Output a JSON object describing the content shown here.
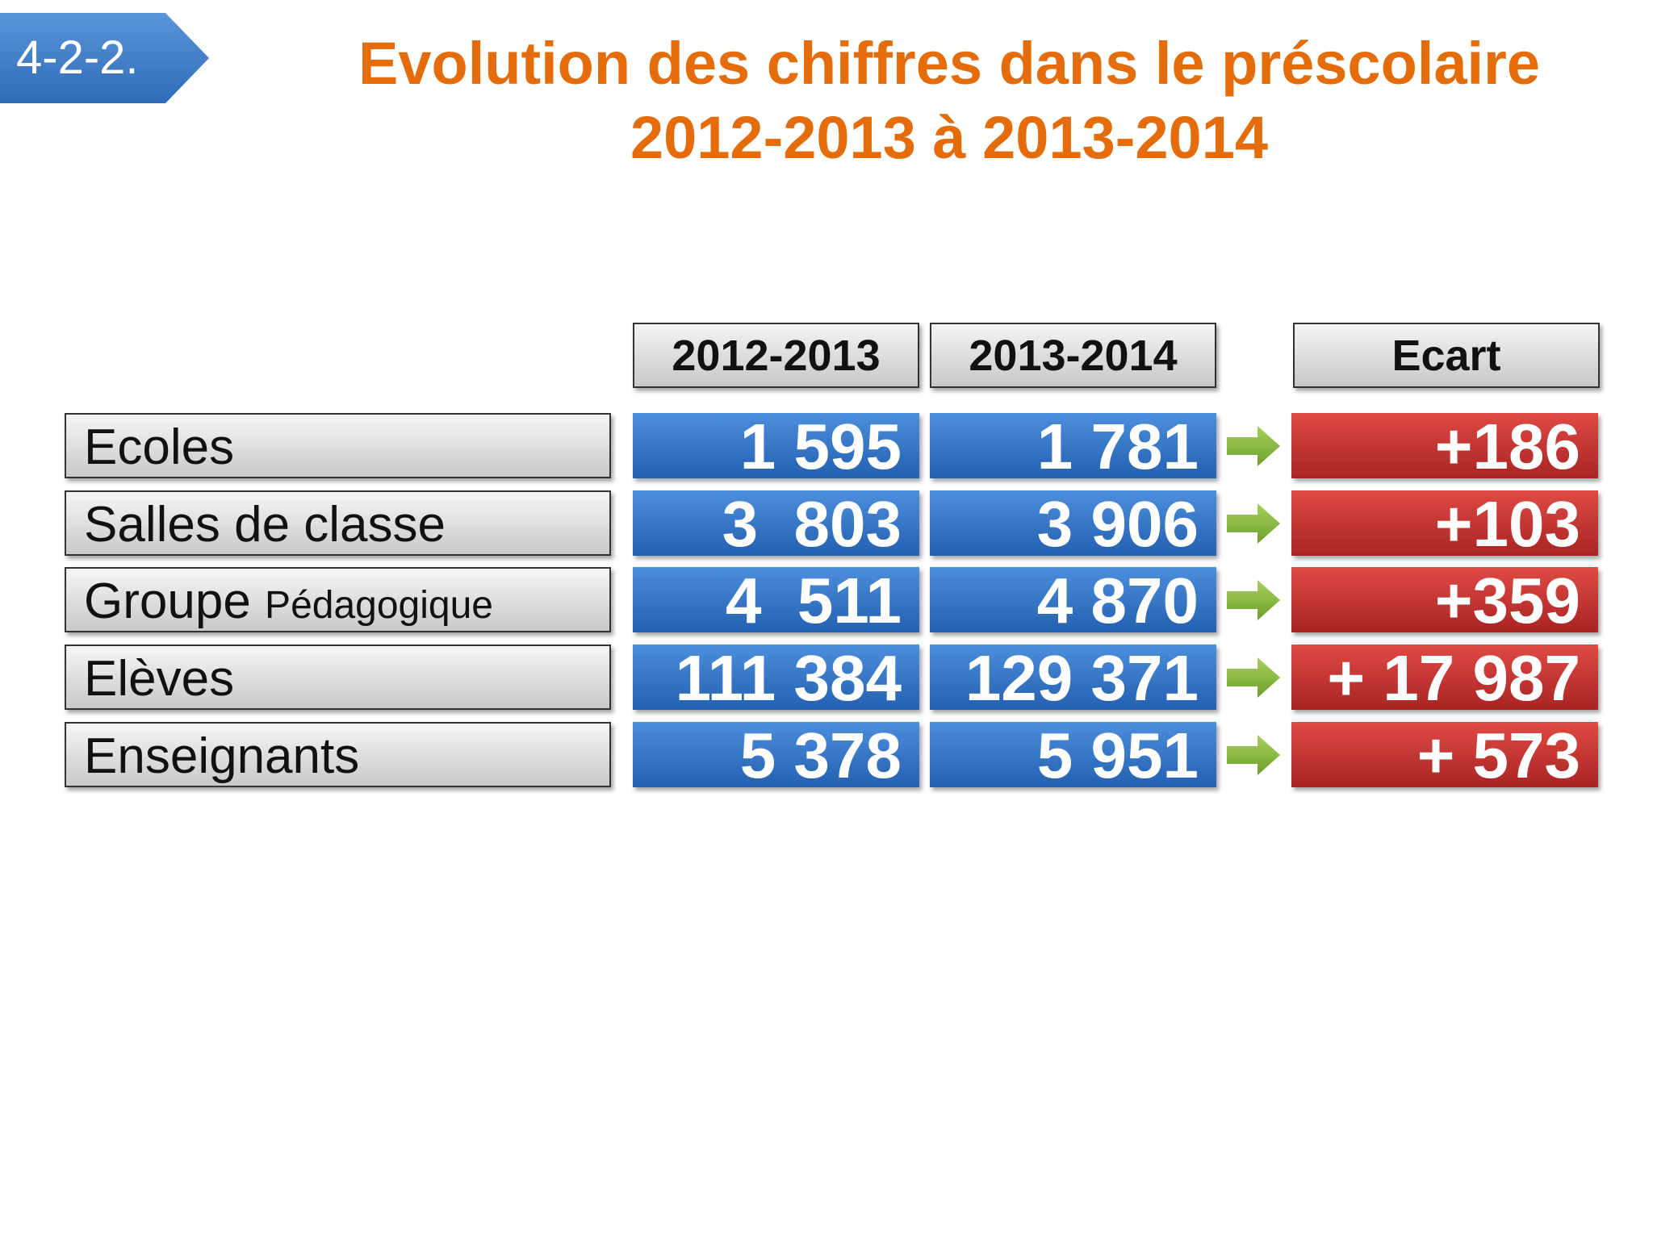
{
  "badge": "4-2-2.",
  "title": {
    "line1": "Evolution des chiffres dans le préscolaire",
    "line2": "2012-2013 à 2013-2014"
  },
  "table": {
    "headers": [
      "2012-2013",
      "2013-2014",
      "Ecart"
    ],
    "rows": [
      {
        "label": "Ecoles",
        "values": [
          "1 595",
          "1 781"
        ],
        "ecart": "+186"
      },
      {
        "label": "Salles de classe",
        "values": [
          "3  803",
          "3 906"
        ],
        "ecart": "+103"
      },
      {
        "label": "Groupe",
        "label_suffix": "Pédagogique",
        "values": [
          "4  511",
          "4 870"
        ],
        "ecart": "+359"
      },
      {
        "label": "Elèves",
        "values": [
          "111 384",
          "129 371"
        ],
        "ecart": "+ 17 987"
      },
      {
        "label": "Enseignants",
        "values": [
          "5 378",
          "5 951"
        ],
        "ecart": "+ 573"
      }
    ]
  }
}
